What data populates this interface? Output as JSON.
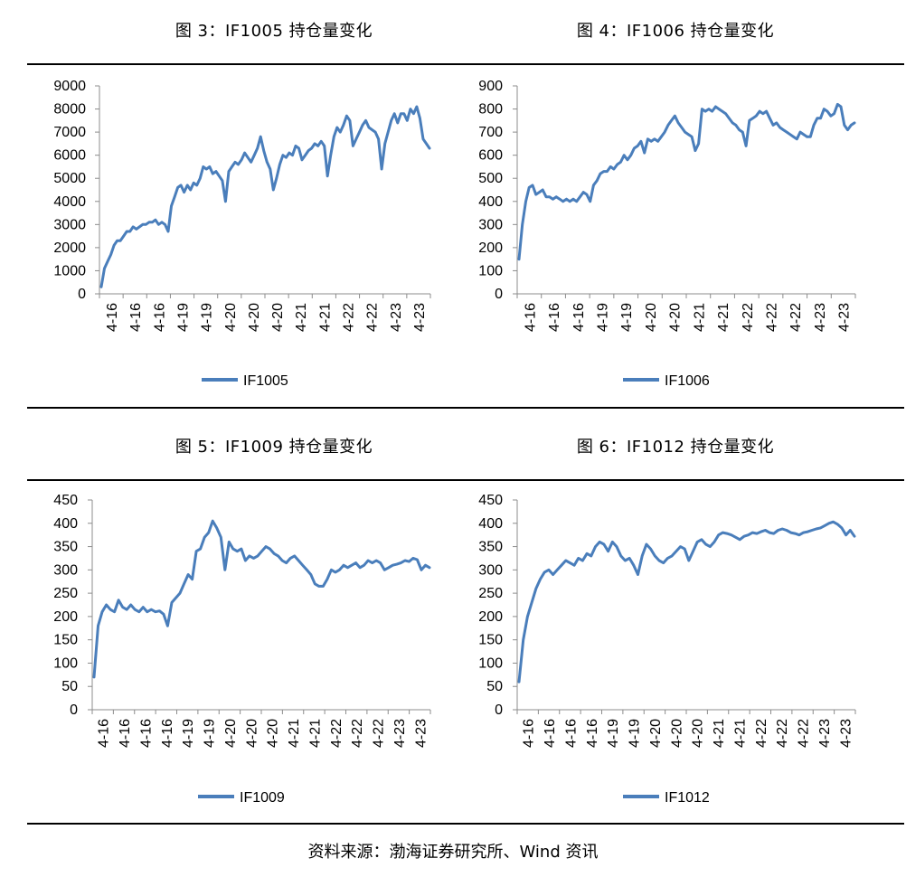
{
  "colors": {
    "series": "#4a7ebb",
    "axis": "#8c8c8c",
    "rule": "#000000"
  },
  "source": "资料来源：渤海证券研究所、Wind 资讯",
  "chart_data": [
    {
      "type": "line",
      "title": "图 3：IF1005 持仓量变化",
      "xlabel": "",
      "ylabel": "",
      "ylim": [
        0,
        9000
      ],
      "yticks": [
        0,
        1000,
        2000,
        3000,
        4000,
        5000,
        6000,
        7000,
        8000,
        9000
      ],
      "xticks": [
        "4-16",
        "4-16",
        "4-16",
        "4-19",
        "4-19",
        "4-20",
        "4-20",
        "4-20",
        "4-21",
        "4-21",
        "4-22",
        "4-22",
        "4-23",
        "4-23"
      ],
      "legend": "bottom",
      "series": [
        {
          "name": "IF1005",
          "values": [
            300,
            1100,
            1400,
            1700,
            2100,
            2300,
            2300,
            2500,
            2700,
            2700,
            2900,
            2800,
            2900,
            3000,
            3000,
            3100,
            3100,
            3200,
            3000,
            3100,
            3000,
            2700,
            3800,
            4200,
            4600,
            4700,
            4400,
            4700,
            4500,
            4800,
            4700,
            5000,
            5500,
            5400,
            5500,
            5200,
            5300,
            5100,
            4900,
            4000,
            5300,
            5500,
            5700,
            5600,
            5800,
            6100,
            5900,
            5700,
            6000,
            6300,
            6800,
            6200,
            5700,
            5400,
            4500,
            5000,
            5600,
            6000,
            5900,
            6100,
            6000,
            6400,
            6300,
            5800,
            6000,
            6200,
            6300,
            6500,
            6400,
            6600,
            6400,
            5100,
            6000,
            6800,
            7200,
            7000,
            7300,
            7700,
            7500,
            6400,
            6700,
            7000,
            7300,
            7500,
            7200,
            7100,
            7000,
            6700,
            5400,
            6500,
            7000,
            7500,
            7800,
            7400,
            7800,
            7800,
            7500,
            8000,
            7800,
            8100,
            7600,
            6700,
            6500,
            6300
          ]
        }
      ]
    },
    {
      "type": "line",
      "title": "图 4：IF1006 持仓量变化",
      "xlabel": "",
      "ylabel": "",
      "ylim": [
        0,
        900
      ],
      "yticks": [
        0,
        100,
        200,
        300,
        400,
        500,
        600,
        700,
        800,
        900
      ],
      "xticks": [
        "4-16",
        "4-16",
        "4-16",
        "4-19",
        "4-19",
        "4-20",
        "4-20",
        "4-21",
        "4-21",
        "4-22",
        "4-22",
        "4-22",
        "4-23",
        "4-23"
      ],
      "legend": "bottom",
      "series": [
        {
          "name": "IF1006",
          "values": [
            150,
            300,
            400,
            460,
            470,
            430,
            440,
            450,
            420,
            420,
            410,
            420,
            410,
            400,
            410,
            400,
            410,
            400,
            420,
            440,
            430,
            400,
            470,
            490,
            520,
            530,
            530,
            550,
            540,
            560,
            570,
            600,
            580,
            600,
            630,
            640,
            660,
            610,
            670,
            660,
            670,
            660,
            680,
            700,
            730,
            750,
            770,
            740,
            720,
            700,
            690,
            680,
            620,
            650,
            800,
            790,
            800,
            790,
            810,
            800,
            790,
            780,
            760,
            740,
            730,
            710,
            700,
            640,
            750,
            760,
            770,
            790,
            780,
            790,
            760,
            730,
            740,
            720,
            710,
            700,
            690,
            680,
            670,
            700,
            690,
            680,
            680,
            730,
            760,
            760,
            800,
            790,
            770,
            780,
            820,
            810,
            730,
            710,
            730,
            740
          ]
        }
      ]
    },
    {
      "type": "line",
      "title": "图 5：IF1009 持仓量变化",
      "xlabel": "",
      "ylabel": "",
      "ylim": [
        0,
        450
      ],
      "yticks": [
        0,
        50,
        100,
        150,
        200,
        250,
        300,
        350,
        400,
        450
      ],
      "xticks": [
        "4-16",
        "4-16",
        "4-16",
        "4-16",
        "4-19",
        "4-19",
        "4-20",
        "4-20",
        "4-20",
        "4-21",
        "4-21",
        "4-22",
        "4-22",
        "4-22",
        "4-23",
        "4-23"
      ],
      "legend": "bottom",
      "series": [
        {
          "name": "IF1009",
          "values": [
            70,
            180,
            210,
            225,
            215,
            210,
            235,
            220,
            215,
            225,
            215,
            210,
            220,
            210,
            215,
            210,
            212,
            205,
            180,
            230,
            240,
            250,
            270,
            290,
            280,
            340,
            345,
            370,
            380,
            405,
            390,
            370,
            300,
            360,
            345,
            340,
            345,
            320,
            330,
            325,
            330,
            340,
            350,
            345,
            335,
            330,
            320,
            315,
            325,
            330,
            320,
            310,
            300,
            290,
            270,
            265,
            265,
            280,
            300,
            295,
            300,
            310,
            305,
            310,
            315,
            305,
            310,
            320,
            315,
            320,
            315,
            300,
            305,
            310,
            312,
            315,
            320,
            318,
            325,
            322,
            300,
            310,
            305
          ]
        }
      ]
    },
    {
      "type": "line",
      "title": "图 6：IF1012 持仓量变化",
      "xlabel": "",
      "ylabel": "",
      "ylim": [
        0,
        450
      ],
      "yticks": [
        0,
        50,
        100,
        150,
        200,
        250,
        300,
        350,
        400,
        450
      ],
      "xticks": [
        "4-16",
        "4-16",
        "4-16",
        "4-16",
        "4-19",
        "4-19",
        "4-20",
        "4-20",
        "4-20",
        "4-21",
        "4-21",
        "4-22",
        "4-22",
        "4-22",
        "4-23",
        "4-23"
      ],
      "legend": "bottom",
      "series": [
        {
          "name": "IF1012",
          "values": [
            60,
            150,
            200,
            230,
            260,
            280,
            295,
            300,
            290,
            300,
            310,
            320,
            315,
            310,
            325,
            320,
            335,
            330,
            350,
            360,
            355,
            340,
            360,
            350,
            330,
            320,
            325,
            310,
            290,
            330,
            355,
            345,
            330,
            320,
            315,
            325,
            330,
            340,
            350,
            345,
            320,
            340,
            360,
            365,
            355,
            350,
            360,
            375,
            380,
            378,
            375,
            370,
            365,
            372,
            375,
            380,
            378,
            382,
            385,
            380,
            378,
            385,
            388,
            385,
            380,
            378,
            375,
            380,
            382,
            385,
            388,
            390,
            395,
            400,
            403,
            398,
            390,
            375,
            385,
            372
          ]
        }
      ]
    }
  ]
}
